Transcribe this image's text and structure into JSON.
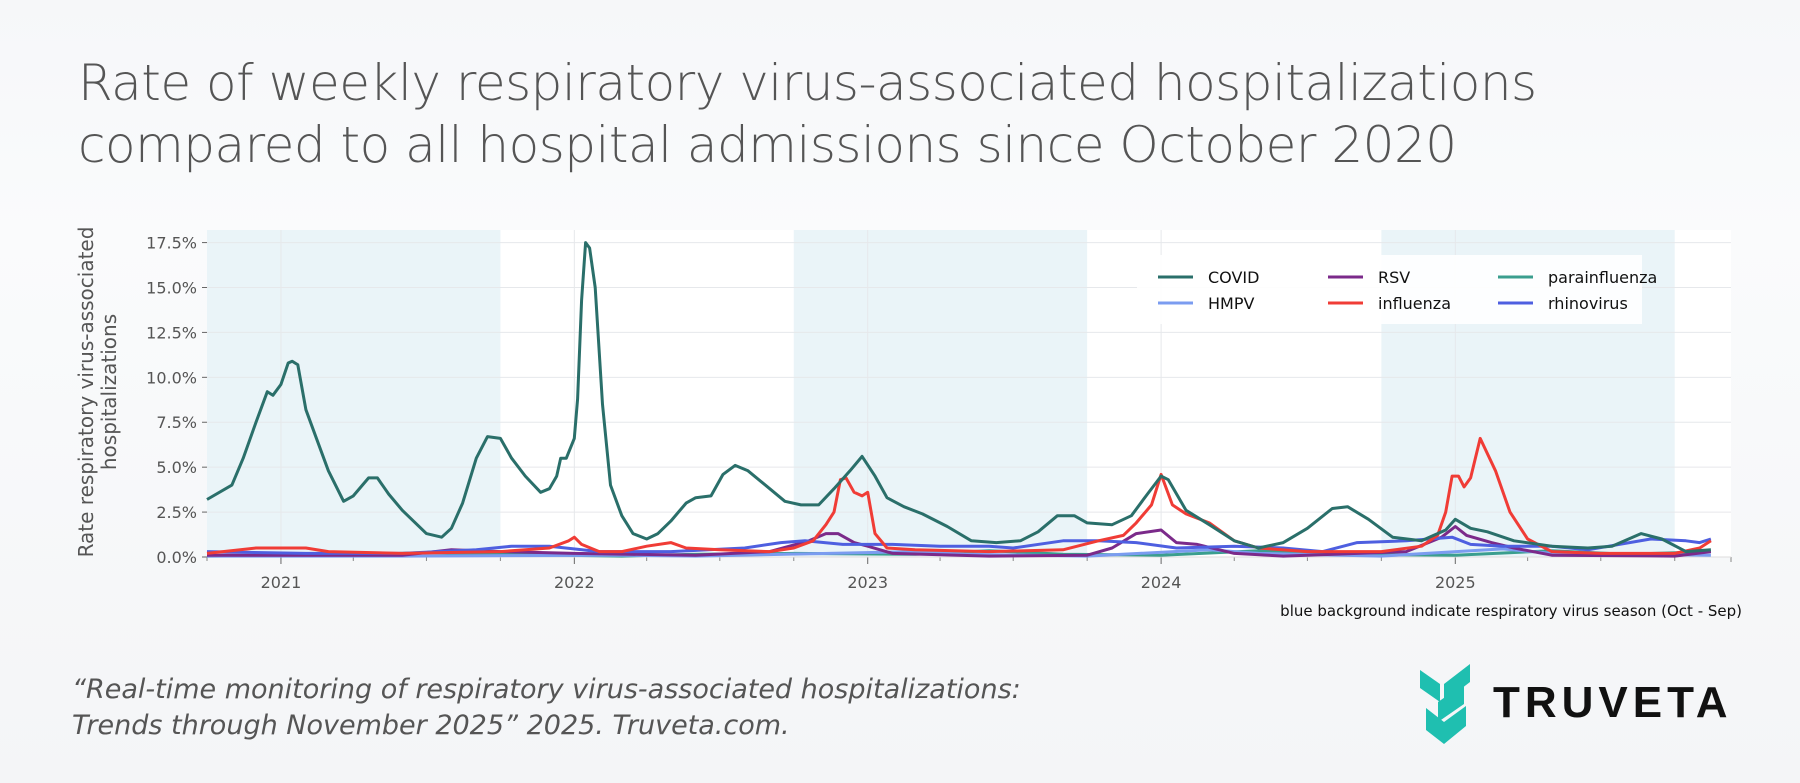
{
  "title": "Rate of weekly respiratory virus-associated hospitalizations compared to all hospital admissions since October 2020",
  "caption": "blue background indicate respiratory virus season (Oct - Sep)",
  "citation": [
    "“Real-time monitoring of respiratory virus-associated hospitalizations:",
    "Trends through November 2025” 2025. Truveta.com."
  ],
  "logo": {
    "text": "TRUVETA",
    "color": "#1fbfb0"
  },
  "chart_data": {
    "type": "line",
    "title": "Rate of weekly respiratory virus-associated hospitalizations compared to all hospital admissions since October 2020",
    "ylabel": "Rate respiratory virus-associated hospitalizations",
    "xlabel": "",
    "xlim": [
      "2020-10-01",
      "2025-12-10"
    ],
    "ylim": [
      0,
      18.2
    ],
    "yticks": [
      0,
      2.5,
      5,
      7.5,
      10,
      12.5,
      15,
      17.5
    ],
    "ytick_labels": [
      "0.0%",
      "2.5%",
      "5.0%",
      "7.5%",
      "10.0%",
      "12.5%",
      "15.0%",
      "17.5%"
    ],
    "xticks": [
      "2021-01-01",
      "2022-01-01",
      "2023-01-01",
      "2024-01-01",
      "2025-01-01"
    ],
    "xtick_labels": [
      "2021",
      "2022",
      "2023",
      "2024",
      "2025"
    ],
    "grid": true,
    "legend_position": "top-right",
    "shaded_periods": [
      [
        "2020-10-01",
        "2021-10-01"
      ],
      [
        "2022-10-01",
        "2023-10-01"
      ],
      [
        "2024-10-01",
        "2025-10-01"
      ]
    ],
    "shade_color": "#eaf4f8",
    "series": [
      {
        "name": "COVID",
        "color": "#2a6f6a",
        "points": [
          [
            "2020-10-01",
            3.2
          ],
          [
            "2020-11-01",
            4.0
          ],
          [
            "2020-11-15",
            5.5
          ],
          [
            "2020-12-01",
            7.5
          ],
          [
            "2020-12-15",
            9.2
          ],
          [
            "2020-12-22",
            9.0
          ],
          [
            "2021-01-01",
            9.6
          ],
          [
            "2021-01-10",
            10.8
          ],
          [
            "2021-01-15",
            10.9
          ],
          [
            "2021-01-22",
            10.7
          ],
          [
            "2021-02-01",
            8.2
          ],
          [
            "2021-02-15",
            6.5
          ],
          [
            "2021-03-01",
            4.8
          ],
          [
            "2021-03-20",
            3.1
          ],
          [
            "2021-04-01",
            3.4
          ],
          [
            "2021-04-20",
            4.4
          ],
          [
            "2021-05-01",
            4.4
          ],
          [
            "2021-05-15",
            3.5
          ],
          [
            "2021-06-01",
            2.6
          ],
          [
            "2021-07-01",
            1.3
          ],
          [
            "2021-07-20",
            1.1
          ],
          [
            "2021-08-01",
            1.6
          ],
          [
            "2021-08-15",
            3.0
          ],
          [
            "2021-09-01",
            5.5
          ],
          [
            "2021-09-15",
            6.7
          ],
          [
            "2021-10-01",
            6.6
          ],
          [
            "2021-10-15",
            5.5
          ],
          [
            "2021-11-01",
            4.5
          ],
          [
            "2021-11-20",
            3.6
          ],
          [
            "2021-12-01",
            3.8
          ],
          [
            "2021-12-10",
            4.5
          ],
          [
            "2021-12-15",
            5.5
          ],
          [
            "2021-12-22",
            5.5
          ],
          [
            "2022-01-01",
            6.6
          ],
          [
            "2022-01-05",
            8.8
          ],
          [
            "2022-01-10",
            14.3
          ],
          [
            "2022-01-15",
            17.5
          ],
          [
            "2022-01-20",
            17.2
          ],
          [
            "2022-01-27",
            15.0
          ],
          [
            "2022-02-05",
            8.5
          ],
          [
            "2022-02-15",
            4.0
          ],
          [
            "2022-03-01",
            2.3
          ],
          [
            "2022-03-15",
            1.3
          ],
          [
            "2022-04-01",
            1.0
          ],
          [
            "2022-04-15",
            1.3
          ],
          [
            "2022-05-01",
            2.0
          ],
          [
            "2022-05-20",
            3.0
          ],
          [
            "2022-06-01",
            3.3
          ],
          [
            "2022-06-20",
            3.4
          ],
          [
            "2022-07-05",
            4.6
          ],
          [
            "2022-07-20",
            5.1
          ],
          [
            "2022-08-05",
            4.8
          ],
          [
            "2022-09-01",
            3.8
          ],
          [
            "2022-09-20",
            3.1
          ],
          [
            "2022-10-10",
            2.9
          ],
          [
            "2022-11-01",
            2.9
          ],
          [
            "2022-11-20",
            3.8
          ],
          [
            "2022-12-10",
            4.8
          ],
          [
            "2022-12-25",
            5.6
          ],
          [
            "2023-01-10",
            4.5
          ],
          [
            "2023-01-25",
            3.3
          ],
          [
            "2023-02-15",
            2.8
          ],
          [
            "2023-03-10",
            2.4
          ],
          [
            "2023-04-10",
            1.7
          ],
          [
            "2023-05-10",
            0.9
          ],
          [
            "2023-06-10",
            0.8
          ],
          [
            "2023-07-10",
            0.9
          ],
          [
            "2023-08-01",
            1.4
          ],
          [
            "2023-08-25",
            2.3
          ],
          [
            "2023-09-15",
            2.3
          ],
          [
            "2023-10-01",
            1.9
          ],
          [
            "2023-11-01",
            1.8
          ],
          [
            "2023-11-25",
            2.3
          ],
          [
            "2023-12-15",
            3.5
          ],
          [
            "2024-01-01",
            4.5
          ],
          [
            "2024-01-10",
            4.3
          ],
          [
            "2024-02-01",
            2.6
          ],
          [
            "2024-03-01",
            1.8
          ],
          [
            "2024-04-01",
            0.9
          ],
          [
            "2024-05-01",
            0.5
          ],
          [
            "2024-06-01",
            0.8
          ],
          [
            "2024-07-01",
            1.6
          ],
          [
            "2024-08-01",
            2.7
          ],
          [
            "2024-08-20",
            2.8
          ],
          [
            "2024-09-15",
            2.1
          ],
          [
            "2024-10-15",
            1.1
          ],
          [
            "2024-11-20",
            0.9
          ],
          [
            "2024-12-20",
            1.5
          ],
          [
            "2025-01-01",
            2.1
          ],
          [
            "2025-01-20",
            1.6
          ],
          [
            "2025-02-10",
            1.4
          ],
          [
            "2025-03-15",
            0.9
          ],
          [
            "2025-05-01",
            0.6
          ],
          [
            "2025-06-15",
            0.5
          ],
          [
            "2025-07-15",
            0.6
          ],
          [
            "2025-08-20",
            1.3
          ],
          [
            "2025-09-15",
            1.0
          ],
          [
            "2025-10-15",
            0.3
          ],
          [
            "2025-11-15",
            0.4
          ]
        ]
      },
      {
        "name": "RSV",
        "color": "#7b2a8a",
        "points": [
          [
            "2020-10-01",
            0.1
          ],
          [
            "2021-06-01",
            0.1
          ],
          [
            "2021-08-01",
            0.4
          ],
          [
            "2021-10-01",
            0.3
          ],
          [
            "2022-01-01",
            0.2
          ],
          [
            "2022-06-01",
            0.1
          ],
          [
            "2022-09-01",
            0.3
          ],
          [
            "2022-10-20",
            0.9
          ],
          [
            "2022-11-10",
            1.3
          ],
          [
            "2022-11-25",
            1.3
          ],
          [
            "2022-12-15",
            0.8
          ],
          [
            "2023-01-01",
            0.6
          ],
          [
            "2023-02-01",
            0.2
          ],
          [
            "2023-06-01",
            0.05
          ],
          [
            "2023-10-01",
            0.1
          ],
          [
            "2023-11-01",
            0.5
          ],
          [
            "2023-12-01",
            1.3
          ],
          [
            "2024-01-01",
            1.5
          ],
          [
            "2024-01-20",
            0.8
          ],
          [
            "2024-02-15",
            0.7
          ],
          [
            "2024-04-01",
            0.2
          ],
          [
            "2024-06-01",
            0.05
          ],
          [
            "2024-11-01",
            0.3
          ],
          [
            "2024-12-15",
            1.1
          ],
          [
            "2025-01-01",
            1.7
          ],
          [
            "2025-01-15",
            1.2
          ],
          [
            "2025-02-15",
            0.8
          ],
          [
            "2025-03-15",
            0.5
          ],
          [
            "2025-05-01",
            0.1
          ],
          [
            "2025-10-01",
            0.05
          ],
          [
            "2025-11-15",
            0.3
          ]
        ]
      },
      {
        "name": "parainfluenza",
        "color": "#3a9e8e",
        "points": [
          [
            "2020-10-01",
            0.05
          ],
          [
            "2021-04-01",
            0.1
          ],
          [
            "2021-07-01",
            0.25
          ],
          [
            "2021-10-01",
            0.15
          ],
          [
            "2022-03-01",
            0.05
          ],
          [
            "2022-06-01",
            0.15
          ],
          [
            "2022-10-01",
            0.2
          ],
          [
            "2023-03-01",
            0.15
          ],
          [
            "2023-06-01",
            0.35
          ],
          [
            "2023-09-01",
            0.15
          ],
          [
            "2024-01-01",
            0.1
          ],
          [
            "2024-05-01",
            0.35
          ],
          [
            "2024-08-01",
            0.15
          ],
          [
            "2025-01-01",
            0.1
          ],
          [
            "2025-05-01",
            0.35
          ],
          [
            "2025-08-01",
            0.15
          ],
          [
            "2025-11-15",
            0.3
          ]
        ]
      },
      {
        "name": "HMPV",
        "color": "#7b9cf0",
        "points": [
          [
            "2020-10-01",
            0.05
          ],
          [
            "2021-06-01",
            0.05
          ],
          [
            "2022-03-01",
            0.1
          ],
          [
            "2022-06-01",
            0.05
          ],
          [
            "2023-03-01",
            0.3
          ],
          [
            "2023-05-01",
            0.15
          ],
          [
            "2023-10-01",
            0.05
          ],
          [
            "2024-03-01",
            0.4
          ],
          [
            "2024-05-01",
            0.2
          ],
          [
            "2024-10-01",
            0.05
          ],
          [
            "2025-03-01",
            0.45
          ],
          [
            "2025-05-01",
            0.2
          ],
          [
            "2025-11-15",
            0.1
          ]
        ]
      },
      {
        "name": "influenza",
        "color": "#f03c36",
        "points": [
          [
            "2020-10-01",
            0.2
          ],
          [
            "2020-12-01",
            0.5
          ],
          [
            "2021-02-01",
            0.5
          ],
          [
            "2021-03-01",
            0.3
          ],
          [
            "2021-06-01",
            0.2
          ],
          [
            "2021-10-01",
            0.3
          ],
          [
            "2021-12-01",
            0.5
          ],
          [
            "2021-12-25",
            0.9
          ],
          [
            "2022-01-01",
            1.1
          ],
          [
            "2022-01-10",
            0.7
          ],
          [
            "2022-02-01",
            0.3
          ],
          [
            "2022-03-01",
            0.3
          ],
          [
            "2022-04-01",
            0.6
          ],
          [
            "2022-05-01",
            0.8
          ],
          [
            "2022-05-20",
            0.5
          ],
          [
            "2022-07-01",
            0.4
          ],
          [
            "2022-09-01",
            0.3
          ],
          [
            "2022-10-01",
            0.5
          ],
          [
            "2022-10-25",
            0.9
          ],
          [
            "2022-11-10",
            1.8
          ],
          [
            "2022-11-20",
            2.5
          ],
          [
            "2022-11-28",
            4.3
          ],
          [
            "2022-12-05",
            4.4
          ],
          [
            "2022-12-15",
            3.6
          ],
          [
            "2022-12-25",
            3.4
          ],
          [
            "2023-01-01",
            3.6
          ],
          [
            "2023-01-10",
            1.3
          ],
          [
            "2023-01-25",
            0.5
          ],
          [
            "2023-03-01",
            0.4
          ],
          [
            "2023-06-01",
            0.3
          ],
          [
            "2023-09-01",
            0.4
          ],
          [
            "2023-10-15",
            0.9
          ],
          [
            "2023-11-15",
            1.2
          ],
          [
            "2023-12-01",
            1.9
          ],
          [
            "2023-12-20",
            2.9
          ],
          [
            "2024-01-01",
            4.6
          ],
          [
            "2024-01-15",
            2.9
          ],
          [
            "2024-02-01",
            2.4
          ],
          [
            "2024-03-01",
            1.9
          ],
          [
            "2024-04-01",
            0.9
          ],
          [
            "2024-05-01",
            0.5
          ],
          [
            "2024-07-01",
            0.3
          ],
          [
            "2024-10-01",
            0.3
          ],
          [
            "2024-11-20",
            0.6
          ],
          [
            "2024-12-10",
            1.2
          ],
          [
            "2024-12-20",
            2.5
          ],
          [
            "2024-12-28",
            4.5
          ],
          [
            "2025-01-05",
            4.5
          ],
          [
            "2025-01-12",
            3.9
          ],
          [
            "2025-01-20",
            4.4
          ],
          [
            "2025-02-01",
            6.6
          ],
          [
            "2025-02-20",
            4.8
          ],
          [
            "2025-03-10",
            2.5
          ],
          [
            "2025-04-01",
            1.0
          ],
          [
            "2025-05-01",
            0.3
          ],
          [
            "2025-07-01",
            0.2
          ],
          [
            "2025-10-01",
            0.2
          ],
          [
            "2025-11-01",
            0.5
          ],
          [
            "2025-11-15",
            0.9
          ]
        ]
      },
      {
        "name": "rhinovirus",
        "color": "#4e5fe0",
        "points": [
          [
            "2020-10-01",
            0.3
          ],
          [
            "2021-02-01",
            0.2
          ],
          [
            "2021-06-01",
            0.2
          ],
          [
            "2021-09-01",
            0.4
          ],
          [
            "2021-10-15",
            0.6
          ],
          [
            "2021-12-01",
            0.6
          ],
          [
            "2022-02-01",
            0.3
          ],
          [
            "2022-05-01",
            0.3
          ],
          [
            "2022-08-01",
            0.5
          ],
          [
            "2022-09-15",
            0.8
          ],
          [
            "2022-10-15",
            0.9
          ],
          [
            "2022-12-01",
            0.7
          ],
          [
            "2023-02-01",
            0.7
          ],
          [
            "2023-04-01",
            0.6
          ],
          [
            "2023-06-01",
            0.6
          ],
          [
            "2023-07-01",
            0.5
          ],
          [
            "2023-09-01",
            0.9
          ],
          [
            "2023-10-15",
            0.9
          ],
          [
            "2023-12-01",
            0.8
          ],
          [
            "2024-01-20",
            0.5
          ],
          [
            "2024-04-01",
            0.6
          ],
          [
            "2024-06-01",
            0.5
          ],
          [
            "2024-07-20",
            0.3
          ],
          [
            "2024-09-01",
            0.8
          ],
          [
            "2024-11-01",
            0.9
          ],
          [
            "2024-12-28",
            1.1
          ],
          [
            "2025-01-20",
            0.7
          ],
          [
            "2025-03-01",
            0.6
          ],
          [
            "2025-05-01",
            0.6
          ],
          [
            "2025-06-15",
            0.4
          ],
          [
            "2025-09-01",
            1.0
          ],
          [
            "2025-10-15",
            0.9
          ],
          [
            "2025-11-01",
            0.8
          ],
          [
            "2025-11-15",
            1.0
          ]
        ]
      }
    ],
    "legend_order": [
      "COVID",
      "RSV",
      "parainfluenza",
      "HMPV",
      "influenza",
      "rhinovirus"
    ]
  }
}
